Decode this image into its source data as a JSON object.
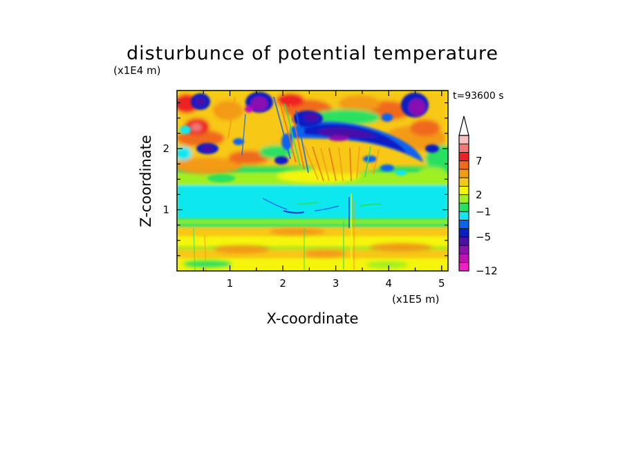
{
  "chart_data": {
    "type": "heatmap",
    "title": "disturbunce of potential temperature",
    "time_label": "t=93600 s",
    "xlabel": "X-coordinate",
    "ylabel": "Z-coordinate",
    "x_unit": "(x1E5 m)",
    "y_unit": "(x1E4 m)",
    "xlim": [
      0,
      5.12
    ],
    "ylim": [
      0,
      2.95
    ],
    "x_ticks": [
      "1",
      "2",
      "3",
      "4",
      "5"
    ],
    "x_tick_values": [
      1,
      2,
      3,
      4,
      5
    ],
    "y_ticks": [
      "1",
      "2"
    ],
    "y_tick_values": [
      1,
      2
    ],
    "colorbar": {
      "labels": [
        "7",
        "2",
        "−1",
        "−5",
        "−12"
      ],
      "colors_top_to_bottom": [
        "#f7c0c0",
        "#f07a78",
        "#ee2222",
        "#f06a1a",
        "#f39a18",
        "#f7c818",
        "#f4f40a",
        "#9ef020",
        "#2ae060",
        "#10e8ef",
        "#0a64f0",
        "#0a1ec4",
        "#4a10a8",
        "#8a10b2",
        "#c010b8",
        "#f020c2"
      ],
      "top_arrow": true
    }
  }
}
